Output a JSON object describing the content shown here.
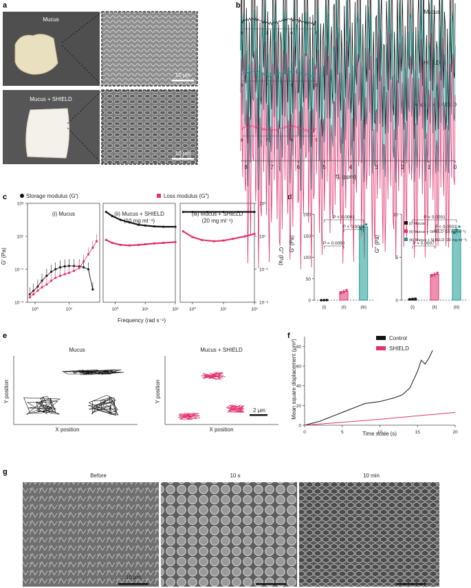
{
  "colors": {
    "black": "#111111",
    "teal": "#1a9a93",
    "pink": "#e0336f",
    "sem": "#8a8a8a"
  },
  "panel_labels": [
    "a",
    "b",
    "c",
    "d",
    "e",
    "f",
    "g"
  ],
  "panel_a": {
    "photo_labels": [
      "Mucus",
      "Mucus + SHIELD"
    ],
    "scale_bars": [
      "10 µm",
      "10 µm"
    ]
  },
  "panel_b": {
    "spectrum_labels": [
      "Mucus",
      "SHIELD",
      "Mucus + SHIELD"
    ],
    "inset_ticks": [
      "8",
      "7",
      "6",
      "5"
    ],
    "xticks": [
      "8",
      "7",
      "6",
      "5",
      "4",
      "3",
      "2",
      "1",
      "0"
    ],
    "xlabel": "f1 (ppm)"
  },
  "panel_e": {
    "titles": [
      "Mucus",
      "Mucus + SHIELD"
    ],
    "xlabel": "X position",
    "ylabel": "Y position",
    "scale_bar": "2 µm"
  },
  "panel_g": {
    "titles": [
      "Before",
      "10 s",
      "10 min"
    ],
    "scale_bar": "10 µm"
  },
  "chart_data": [
    {
      "id": "c",
      "type": "line",
      "legend": [
        "Storage modulus (G′)",
        "Loss modulus (G″)"
      ],
      "log_scale": true,
      "xlabel": "Frequency (rad s⁻¹)",
      "ylabel_left": "G′ (Pa)",
      "ylabel_right": "G″ (Pa)",
      "yticks": [
        "10³",
        "10¹",
        "10⁻¹",
        "10⁻³"
      ],
      "ylim": [
        0.001,
        1000
      ],
      "subplots": [
        {
          "title": "(i) Mucus",
          "xticks": [
            "10⁰",
            "10¹",
            "10²"
          ],
          "xlim": [
            0.6,
            80
          ],
          "storage": {
            "x": [
              0.7,
              0.9,
              1.2,
              1.6,
              2.2,
              3,
              4,
              5.5,
              7.5,
              10,
              14,
              20,
              27,
              37,
              50
            ],
            "y": [
              0.003,
              0.005,
              0.009,
              0.02,
              0.04,
              0.07,
              0.1,
              0.13,
              0.15,
              0.16,
              0.16,
              0.15,
              0.13,
              0.1,
              0.006
            ]
          },
          "loss": {
            "x": [
              0.7,
              0.9,
              1.2,
              1.6,
              2.2,
              3,
              4,
              5.5,
              7.5,
              10,
              14,
              20,
              27,
              37,
              50,
              65
            ],
            "y": [
              0.002,
              0.003,
              0.005,
              0.008,
              0.012,
              0.02,
              0.03,
              0.04,
              0.05,
              0.06,
              0.08,
              0.12,
              0.3,
              0.8,
              2,
              5
            ]
          }
        },
        {
          "title": "(ii) Mucus + SHIELD",
          "subtitle": "(10 mg ml⁻¹)",
          "xticks": [
            "10⁰",
            "10¹",
            "10²"
          ],
          "xlim": [
            0.4,
            100
          ],
          "storage": {
            "x": [
              0.5,
              0.8,
              1.5,
              3,
              6,
              10,
              20,
              40,
              100
            ],
            "y": [
              300,
              170,
              100,
              70,
              50,
              45,
              40,
              38,
              38
            ]
          },
          "loss": {
            "x": [
              0.5,
              0.8,
              1.5,
              3,
              6,
              10,
              20,
              40,
              100
            ],
            "y": [
              6,
              4,
              3,
              2.8,
              3,
              3.3,
              3.7,
              4,
              4.5
            ]
          }
        },
        {
          "title": "(iii) Mucus + SHIELD",
          "subtitle": "(20 mg ml⁻¹)",
          "xticks": [
            "10⁰",
            "10¹",
            "10²"
          ],
          "xlim": [
            0.4,
            100
          ],
          "storage": {
            "x": [
              0.5,
              1,
              3,
              10,
              30,
              100
            ],
            "y": [
              300,
              300,
              300,
              300,
              300,
              300
            ]
          },
          "loss": {
            "x": [
              0.5,
              1,
              2,
              5,
              10,
              20,
              50,
              100
            ],
            "y": [
              20,
              9,
              6,
              5,
              5.5,
              7,
              10,
              14
            ]
          }
        }
      ]
    },
    {
      "id": "d-left",
      "type": "bar",
      "categories": [
        "(i)",
        "(ii)",
        "(iii)"
      ],
      "values": [
        0.2,
        20,
        171
      ],
      "errors": [
        0.3,
        6,
        9
      ],
      "ylabel": "G′ (Pa)",
      "ylim": [
        0,
        200
      ],
      "yticks": [
        "0",
        "50",
        "100",
        "150",
        "200"
      ],
      "brackets": [
        {
          "from": 0,
          "to": 1,
          "label": "P = 0.0090"
        },
        {
          "from": 1,
          "to": 2,
          "label": "P < 0.0001"
        },
        {
          "from": 0,
          "to": 2,
          "label": "P < 0.0001"
        }
      ]
    },
    {
      "id": "d-right",
      "type": "bar",
      "categories": [
        "(i)",
        "(ii)",
        "(iii)"
      ],
      "values": [
        0.15,
        3.0,
        8.2
      ],
      "errors": [
        0.05,
        0.3,
        0.6
      ],
      "ylabel": "G″ (Pa)",
      "ylim": [
        0,
        10
      ],
      "yticks": [
        "0",
        "5",
        "10"
      ],
      "legend": [
        "(i) Mucus",
        "(ii) Mucus + SHIELD (10 mg ml⁻¹)",
        "(iii) Mucus + SHIELD (20 mg ml⁻¹)"
      ],
      "brackets": [
        {
          "from": 0,
          "to": 1,
          "label": "P = 0.0007"
        },
        {
          "from": 1,
          "to": 2,
          "label": "P < 0.0001"
        },
        {
          "from": 0,
          "to": 2,
          "label": "P < 0.0001"
        }
      ]
    },
    {
      "id": "f",
      "type": "line",
      "xlabel": "Time scale (s)",
      "ylabel": "Mean square displacement (µm²)",
      "xlim": [
        0,
        20
      ],
      "ylim": [
        0,
        90
      ],
      "xticks": [
        "0",
        "5",
        "10",
        "15",
        "20"
      ],
      "yticks": [
        "0",
        "20",
        "40",
        "60",
        "80"
      ],
      "series": [
        {
          "name": "Control",
          "x": [
            0,
            1,
            2,
            3,
            4,
            5,
            6,
            7,
            8,
            9,
            10,
            11,
            12,
            13,
            14,
            15,
            15.5,
            16,
            16.5,
            17
          ],
          "y": [
            0,
            2,
            4,
            7,
            10,
            13,
            16,
            19,
            22,
            23,
            24,
            26,
            28,
            31,
            38,
            55,
            66,
            62,
            68,
            76
          ]
        },
        {
          "name": "SHIELD",
          "x": [
            0,
            5,
            10,
            15,
            20
          ],
          "y": [
            0,
            3,
            6,
            9.5,
            13
          ]
        }
      ]
    }
  ]
}
